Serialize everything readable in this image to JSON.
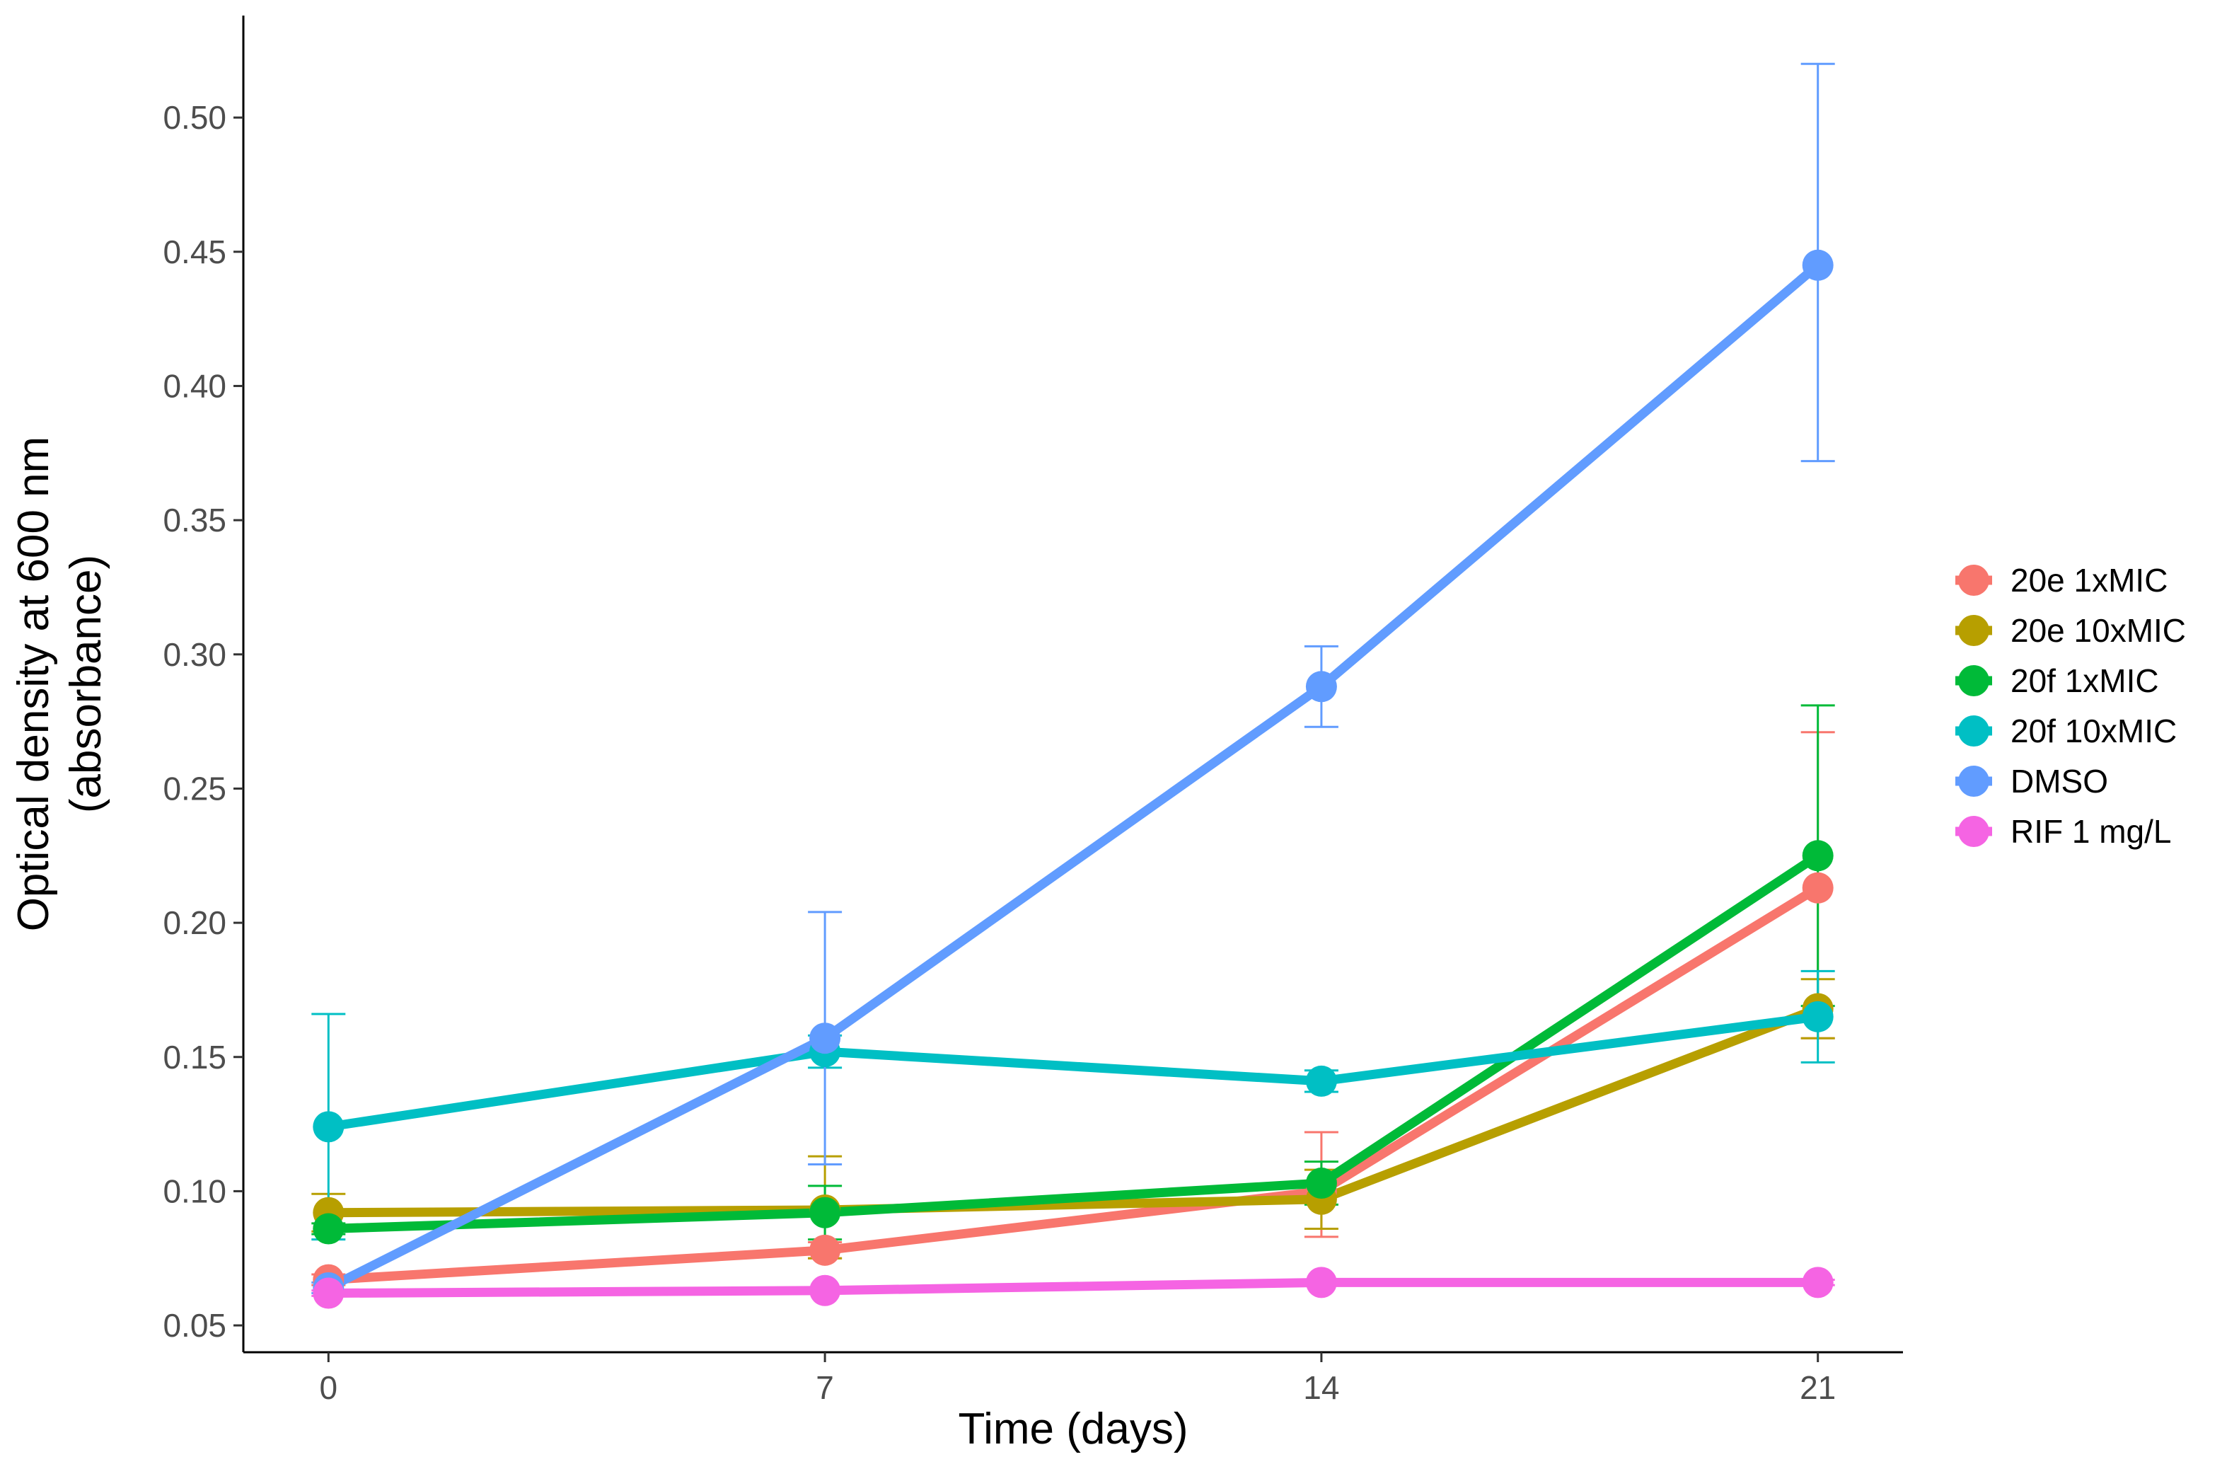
{
  "chart_data": {
    "type": "line",
    "x": [
      0,
      7,
      14,
      21
    ],
    "xticks": [
      "0",
      "7",
      "14",
      "21"
    ],
    "yticks": [
      "0.05",
      "0.10",
      "0.15",
      "0.20",
      "0.25",
      "0.30",
      "0.35",
      "0.40",
      "0.45",
      "0.50"
    ],
    "xlim": [
      -1.2,
      22.2
    ],
    "ylim": [
      0.04,
      0.538
    ],
    "xlabel": "Time (days)",
    "ylabel_lines": [
      "Optical density at 600 nm",
      "(absorbance)"
    ],
    "grid": false,
    "legend_position": "right",
    "series": [
      {
        "name": "20e 1xMIC",
        "color": "#F8766D",
        "values": [
          0.067,
          0.078,
          0.1,
          0.213
        ],
        "err_low": [
          0.065,
          0.075,
          0.083,
          0.157
        ],
        "err_high": [
          0.069,
          0.081,
          0.122,
          0.271
        ]
      },
      {
        "name": "20e 10xMIC",
        "color": "#B79F00",
        "values": [
          0.092,
          0.093,
          0.097,
          0.168
        ],
        "err_low": [
          0.085,
          0.075,
          0.086,
          0.157
        ],
        "err_high": [
          0.099,
          0.113,
          0.108,
          0.179
        ]
      },
      {
        "name": "20f 1xMIC",
        "color": "#00BA38",
        "values": [
          0.086,
          0.092,
          0.103,
          0.225
        ],
        "err_low": [
          0.084,
          0.082,
          0.095,
          0.169
        ],
        "err_high": [
          0.088,
          0.102,
          0.111,
          0.281
        ]
      },
      {
        "name": "20f 10xMIC",
        "color": "#00BFC4",
        "values": [
          0.124,
          0.152,
          0.141,
          0.165
        ],
        "err_low": [
          0.082,
          0.146,
          0.137,
          0.148
        ],
        "err_high": [
          0.166,
          0.158,
          0.145,
          0.182
        ]
      },
      {
        "name": "DMSO",
        "color": "#619CFF",
        "values": [
          0.064,
          0.157,
          0.288,
          0.445
        ],
        "err_low": [
          0.062,
          0.11,
          0.273,
          0.372
        ],
        "err_high": [
          0.066,
          0.204,
          0.303,
          0.52
        ]
      },
      {
        "name": "RIF 1 mg/L",
        "color": "#F564E3",
        "values": [
          0.062,
          0.063,
          0.066,
          0.066
        ],
        "err_low": [
          0.061,
          0.062,
          0.065,
          0.065
        ],
        "err_high": [
          0.063,
          0.064,
          0.067,
          0.067
        ]
      }
    ]
  }
}
